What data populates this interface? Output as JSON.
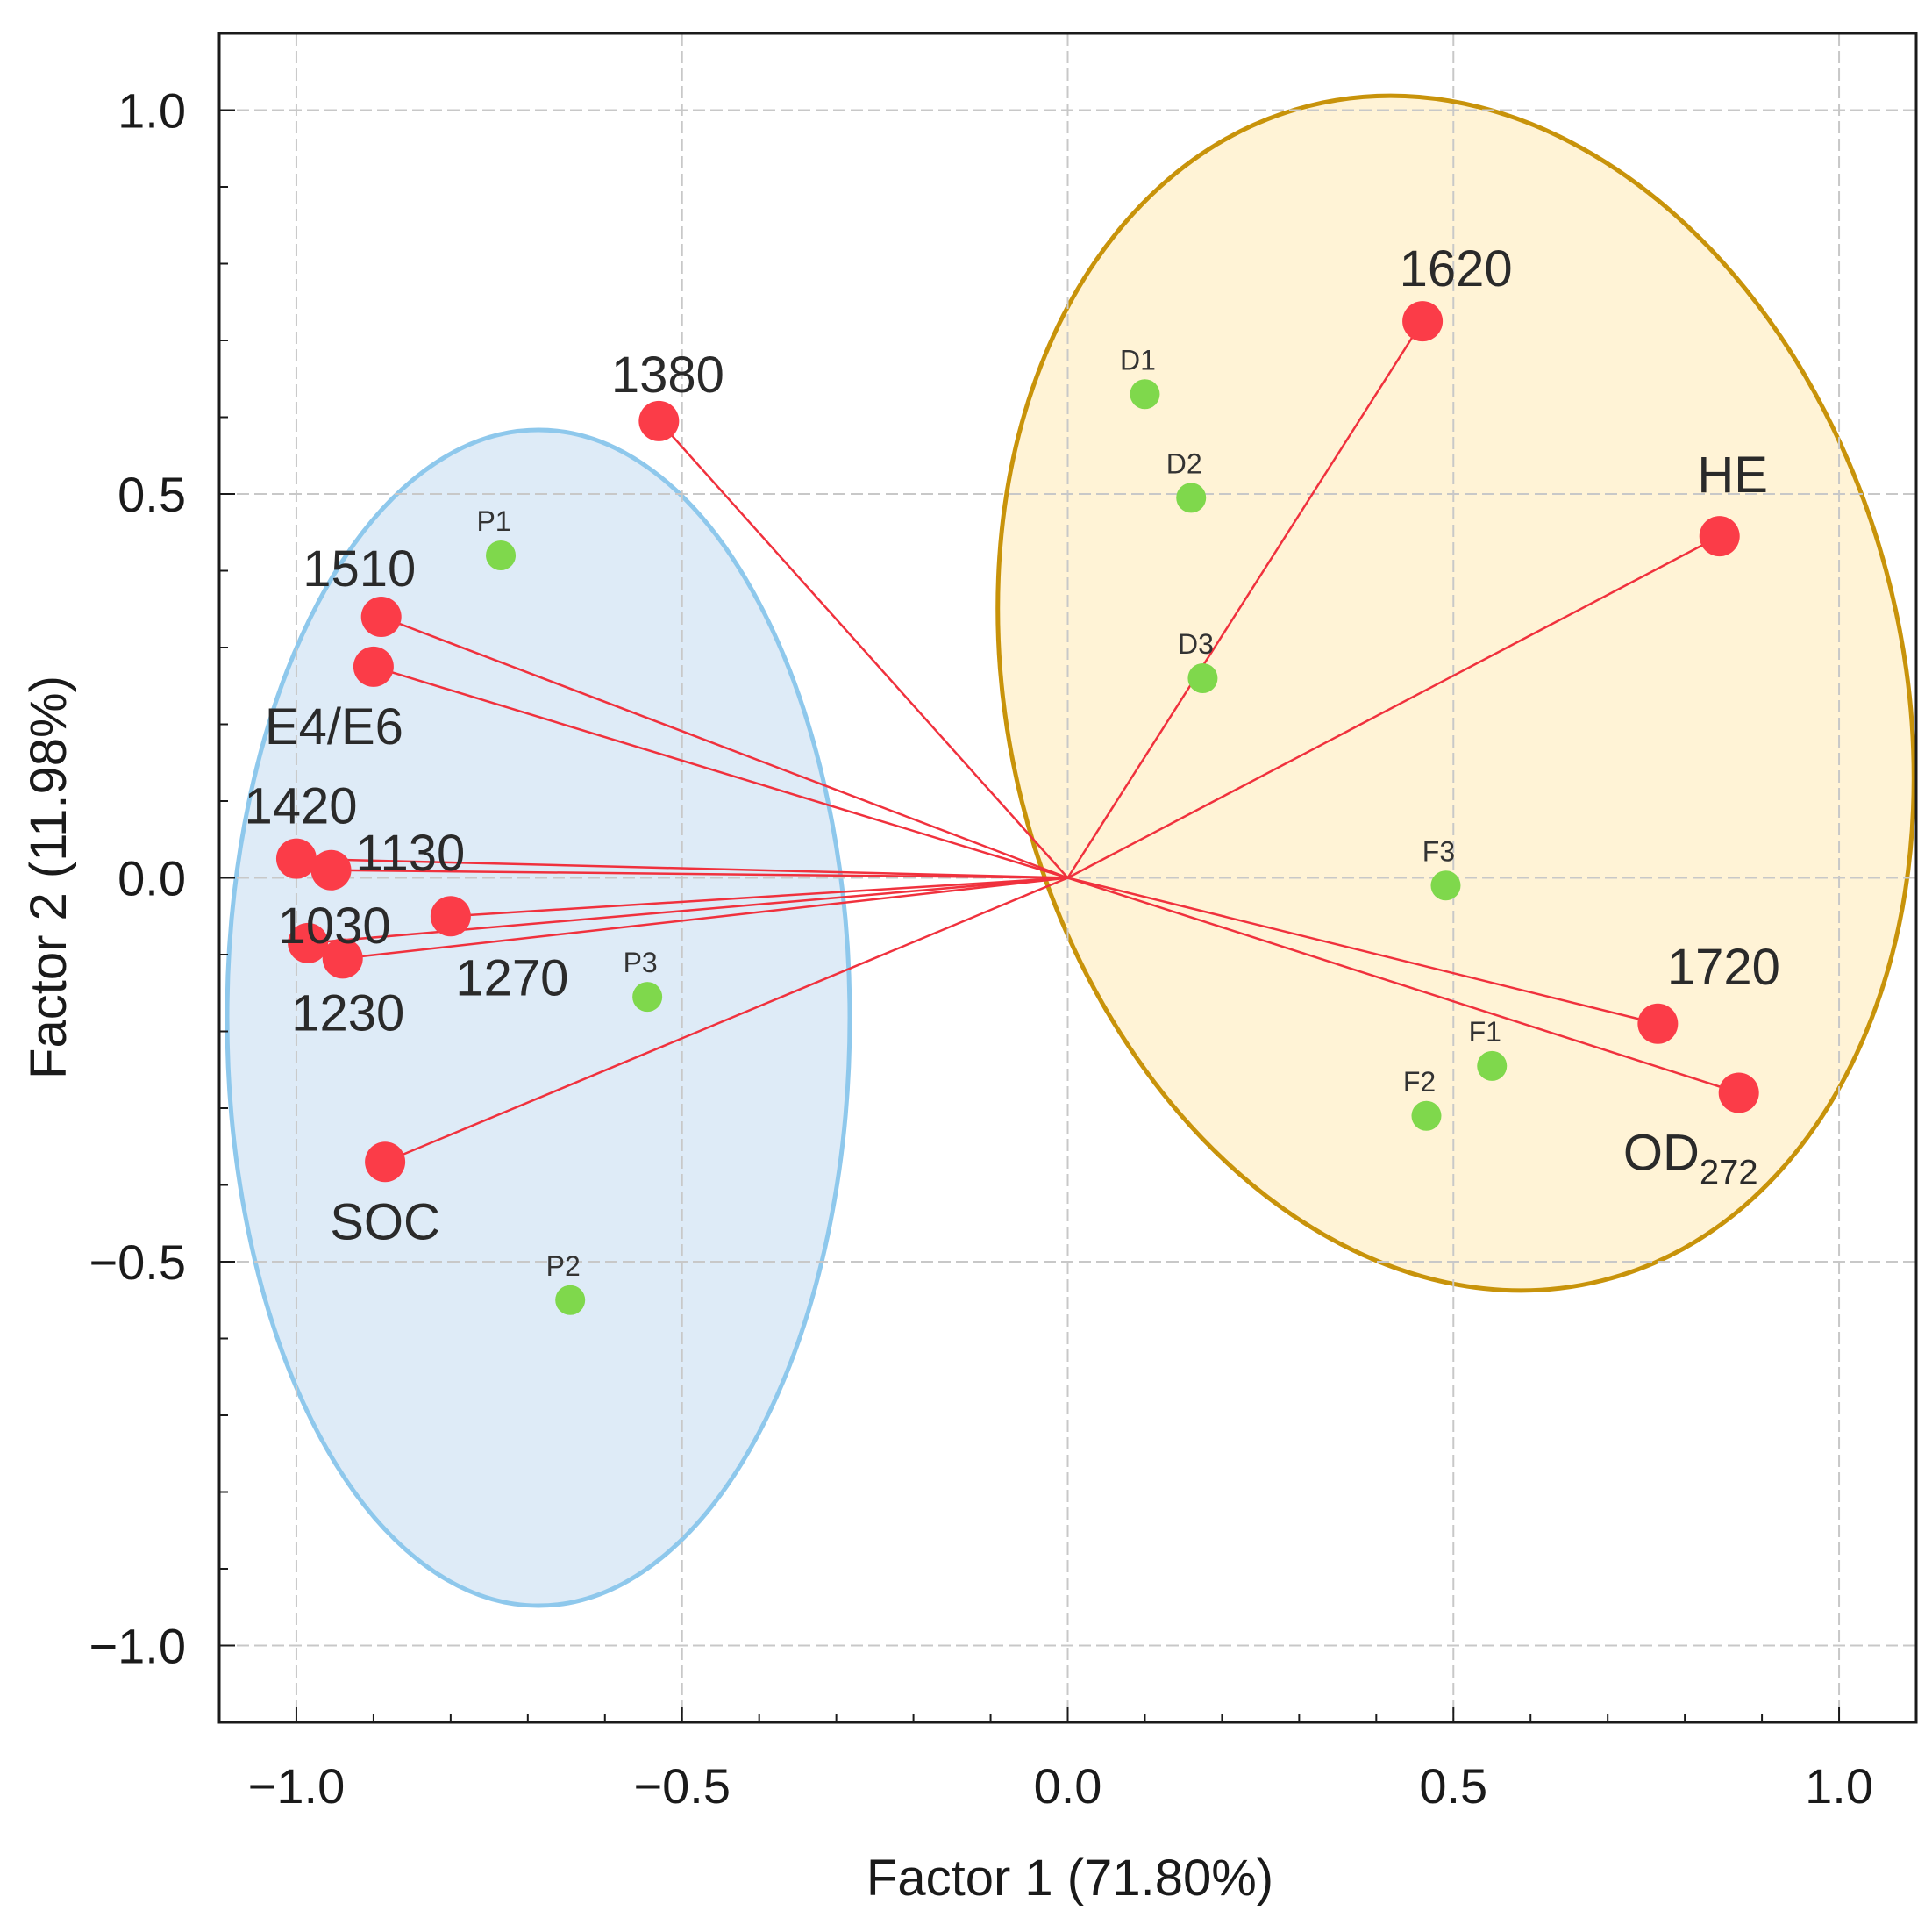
{
  "chart_data": {
    "type": "scatter",
    "title": "",
    "xlabel": "Factor 1 (71.80%)",
    "ylabel": "Factor 2  (11.98%)",
    "xlim": [
      -1.1,
      1.1
    ],
    "ylim": [
      -1.1,
      1.1
    ],
    "xticks": [
      -1.0,
      -0.5,
      0.0,
      0.5,
      1.0
    ],
    "yticks": [
      -1.0,
      -0.5,
      0.0,
      0.5,
      1.0
    ],
    "xtick_labels": [
      "−1.0",
      "−0.5",
      "0.0",
      "0.5",
      "1.0"
    ],
    "ytick_labels": [
      "−1.0",
      "−0.5",
      "0.0",
      "0.5",
      "1.0"
    ],
    "grid": true,
    "variables": [
      {
        "name": "1380",
        "x": -0.53,
        "y": 0.595
      },
      {
        "name": "1510",
        "x": -0.89,
        "y": 0.34
      },
      {
        "name": "E4/E6",
        "x": -0.9,
        "y": 0.275
      },
      {
        "name": "1420",
        "x": -1.0,
        "y": 0.025
      },
      {
        "name": "1130",
        "x": -0.955,
        "y": 0.01
      },
      {
        "name": "1270",
        "x": -0.8,
        "y": -0.05
      },
      {
        "name": "1030",
        "x": -0.985,
        "y": -0.085
      },
      {
        "name": "1230",
        "x": -0.94,
        "y": -0.105
      },
      {
        "name": "SOC",
        "x": -0.885,
        "y": -0.37
      },
      {
        "name": "1620",
        "x": 0.46,
        "y": 0.725
      },
      {
        "name": "HE",
        "x": 0.845,
        "y": 0.445
      },
      {
        "name": "1720",
        "x": 0.765,
        "y": -0.19
      },
      {
        "name": "OD",
        "sub": "272",
        "x": 0.87,
        "y": -0.28
      }
    ],
    "cases": [
      {
        "name": "P1",
        "x": -0.735,
        "y": 0.42
      },
      {
        "name": "P2",
        "x": -0.645,
        "y": -0.55
      },
      {
        "name": "P3",
        "x": -0.545,
        "y": -0.155
      },
      {
        "name": "D1",
        "x": 0.1,
        "y": 0.63
      },
      {
        "name": "D2",
        "x": 0.16,
        "y": 0.495
      },
      {
        "name": "D3",
        "x": 0.175,
        "y": 0.26
      },
      {
        "name": "F1",
        "x": 0.55,
        "y": -0.245
      },
      {
        "name": "F2",
        "x": 0.465,
        "y": -0.31
      },
      {
        "name": "F3",
        "x": 0.49,
        "y": -0.01
      }
    ],
    "groups": [
      {
        "name": "negative-loadings",
        "fill": "#deebf7",
        "stroke": "#8ec8ec"
      },
      {
        "name": "positive-loadings",
        "fill": "#fff3d6",
        "stroke": "#c8930a"
      }
    ],
    "colors": {
      "variable_point": "#fb3c48",
      "vector_line": "#f0313d",
      "case_point": "#7fd84c",
      "grid": "#c8c8c8",
      "frame": "#1a1a1a"
    }
  }
}
